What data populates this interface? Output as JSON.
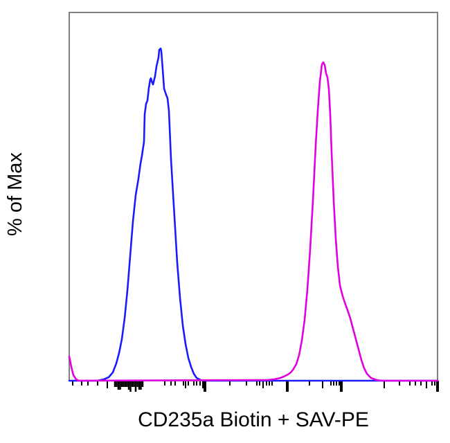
{
  "chart_data": {
    "type": "line",
    "subtype": "flow-cytometry-histogram",
    "title": "",
    "xlabel": "CD235a Biotin + SAV-PE",
    "ylabel": "% of Max",
    "x_scale": "log (biexponential)",
    "x_decades": 5,
    "ylim": [
      0,
      100
    ],
    "grid": false,
    "legend": null,
    "tick_labels_shown": false,
    "series": [
      {
        "name": "blue-population",
        "color": "#1a1aff",
        "peak_y_percent": 100,
        "points": [
          [
            100,
            550
          ],
          [
            140,
            550
          ],
          [
            150,
            548
          ],
          [
            157,
            545
          ],
          [
            163,
            538
          ],
          [
            168,
            525
          ],
          [
            172,
            510
          ],
          [
            176,
            490
          ],
          [
            180,
            460
          ],
          [
            184,
            420
          ],
          [
            188,
            370
          ],
          [
            192,
            320
          ],
          [
            196,
            282
          ],
          [
            200,
            258
          ],
          [
            203,
            236
          ],
          [
            205,
            225
          ],
          [
            208,
            205
          ],
          [
            209,
            165
          ],
          [
            211,
            150
          ],
          [
            213,
            145
          ],
          [
            215,
            127
          ],
          [
            217,
            115
          ],
          [
            218,
            113
          ],
          [
            219,
            117
          ],
          [
            221,
            122
          ],
          [
            224,
            110
          ],
          [
            226,
            96
          ],
          [
            229,
            83
          ],
          [
            230,
            72
          ],
          [
            232,
            70
          ],
          [
            233,
            74
          ],
          [
            235,
            100
          ],
          [
            237,
            128
          ],
          [
            240,
            137
          ],
          [
            242,
            142
          ],
          [
            244,
            160
          ],
          [
            247,
            230
          ],
          [
            250,
            280
          ],
          [
            253,
            330
          ],
          [
            256,
            380
          ],
          [
            260,
            430
          ],
          [
            264,
            470
          ],
          [
            268,
            497
          ],
          [
            272,
            517
          ],
          [
            276,
            530
          ],
          [
            280,
            540
          ],
          [
            284,
            546
          ],
          [
            290,
            549
          ],
          [
            296,
            550
          ],
          [
            632,
            550
          ]
        ]
      },
      {
        "name": "magenta-population",
        "color": "#e000e0",
        "peak_y_percent": 96,
        "points": [
          [
            100,
            515
          ],
          [
            103,
            530
          ],
          [
            106,
            542
          ],
          [
            110,
            548
          ],
          [
            114,
            550
          ],
          [
            370,
            549
          ],
          [
            386,
            549
          ],
          [
            396,
            548
          ],
          [
            405,
            546
          ],
          [
            410,
            544
          ],
          [
            416,
            541
          ],
          [
            420,
            538
          ],
          [
            424,
            533
          ],
          [
            428,
            526
          ],
          [
            432,
            513
          ],
          [
            436,
            492
          ],
          [
            440,
            462
          ],
          [
            444,
            418
          ],
          [
            448,
            360
          ],
          [
            452,
            290
          ],
          [
            456,
            210
          ],
          [
            459,
            160
          ],
          [
            462,
            118
          ],
          [
            465,
            93
          ],
          [
            467,
            90
          ],
          [
            469,
            94
          ],
          [
            471,
            106
          ],
          [
            473,
            112
          ],
          [
            475,
            128
          ],
          [
            477,
            165
          ],
          [
            479,
            220
          ],
          [
            482,
            290
          ],
          [
            485,
            345
          ],
          [
            488,
            385
          ],
          [
            491,
            412
          ],
          [
            495,
            428
          ],
          [
            499,
            440
          ],
          [
            502,
            448
          ],
          [
            506,
            460
          ],
          [
            510,
            475
          ],
          [
            514,
            490
          ],
          [
            518,
            505
          ],
          [
            522,
            520
          ],
          [
            526,
            532
          ],
          [
            530,
            540
          ],
          [
            536,
            546
          ],
          [
            544,
            549
          ],
          [
            552,
            550
          ],
          [
            632,
            550
          ]
        ]
      }
    ],
    "axis": {
      "frame": {
        "left": 100,
        "top": 18,
        "right": 632,
        "bottom": 550
      },
      "frame_color": "#808080",
      "major_ticks_x": [
        296,
        415,
        493,
        632
      ],
      "minor_ticks_x": [
        105,
        118,
        127,
        141,
        155,
        238,
        247,
        253,
        265,
        268,
        272,
        280,
        284,
        289,
        293,
        332,
        356,
        371,
        375,
        380,
        385,
        389,
        393,
        447,
        466,
        478,
        482,
        486,
        490,
        555,
        577,
        592,
        600,
        608,
        616,
        624,
        628
      ],
      "dense_tick_cluster_x": [
        166,
        206
      ]
    }
  }
}
